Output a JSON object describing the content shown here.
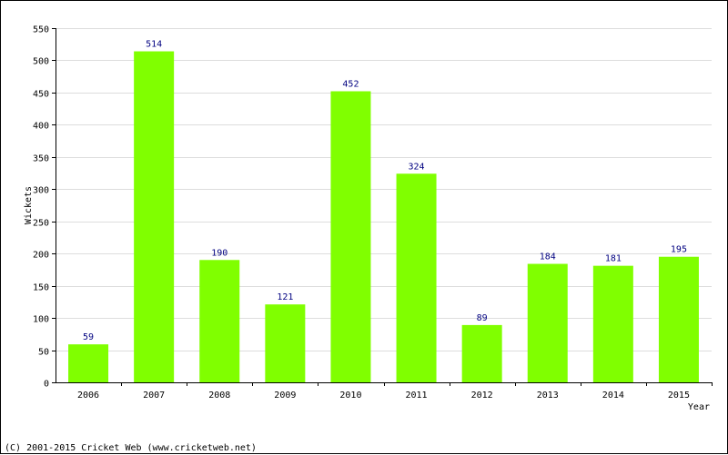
{
  "chart_data": {
    "type": "bar",
    "categories": [
      "2006",
      "2007",
      "2008",
      "2009",
      "2010",
      "2011",
      "2012",
      "2013",
      "2014",
      "2015"
    ],
    "values": [
      59,
      514,
      190,
      121,
      452,
      324,
      89,
      184,
      181,
      195
    ],
    "xlabel": "Year",
    "ylabel": "Wickets",
    "ylim": [
      0,
      550
    ],
    "yticks": [
      0,
      50,
      100,
      150,
      200,
      250,
      300,
      350,
      400,
      450,
      500,
      550
    ],
    "grid": "horizontal",
    "bar_color": "#80ff00",
    "label_color": "#000080"
  },
  "footer": "(C) 2001-2015 Cricket Web (www.cricketweb.net)"
}
